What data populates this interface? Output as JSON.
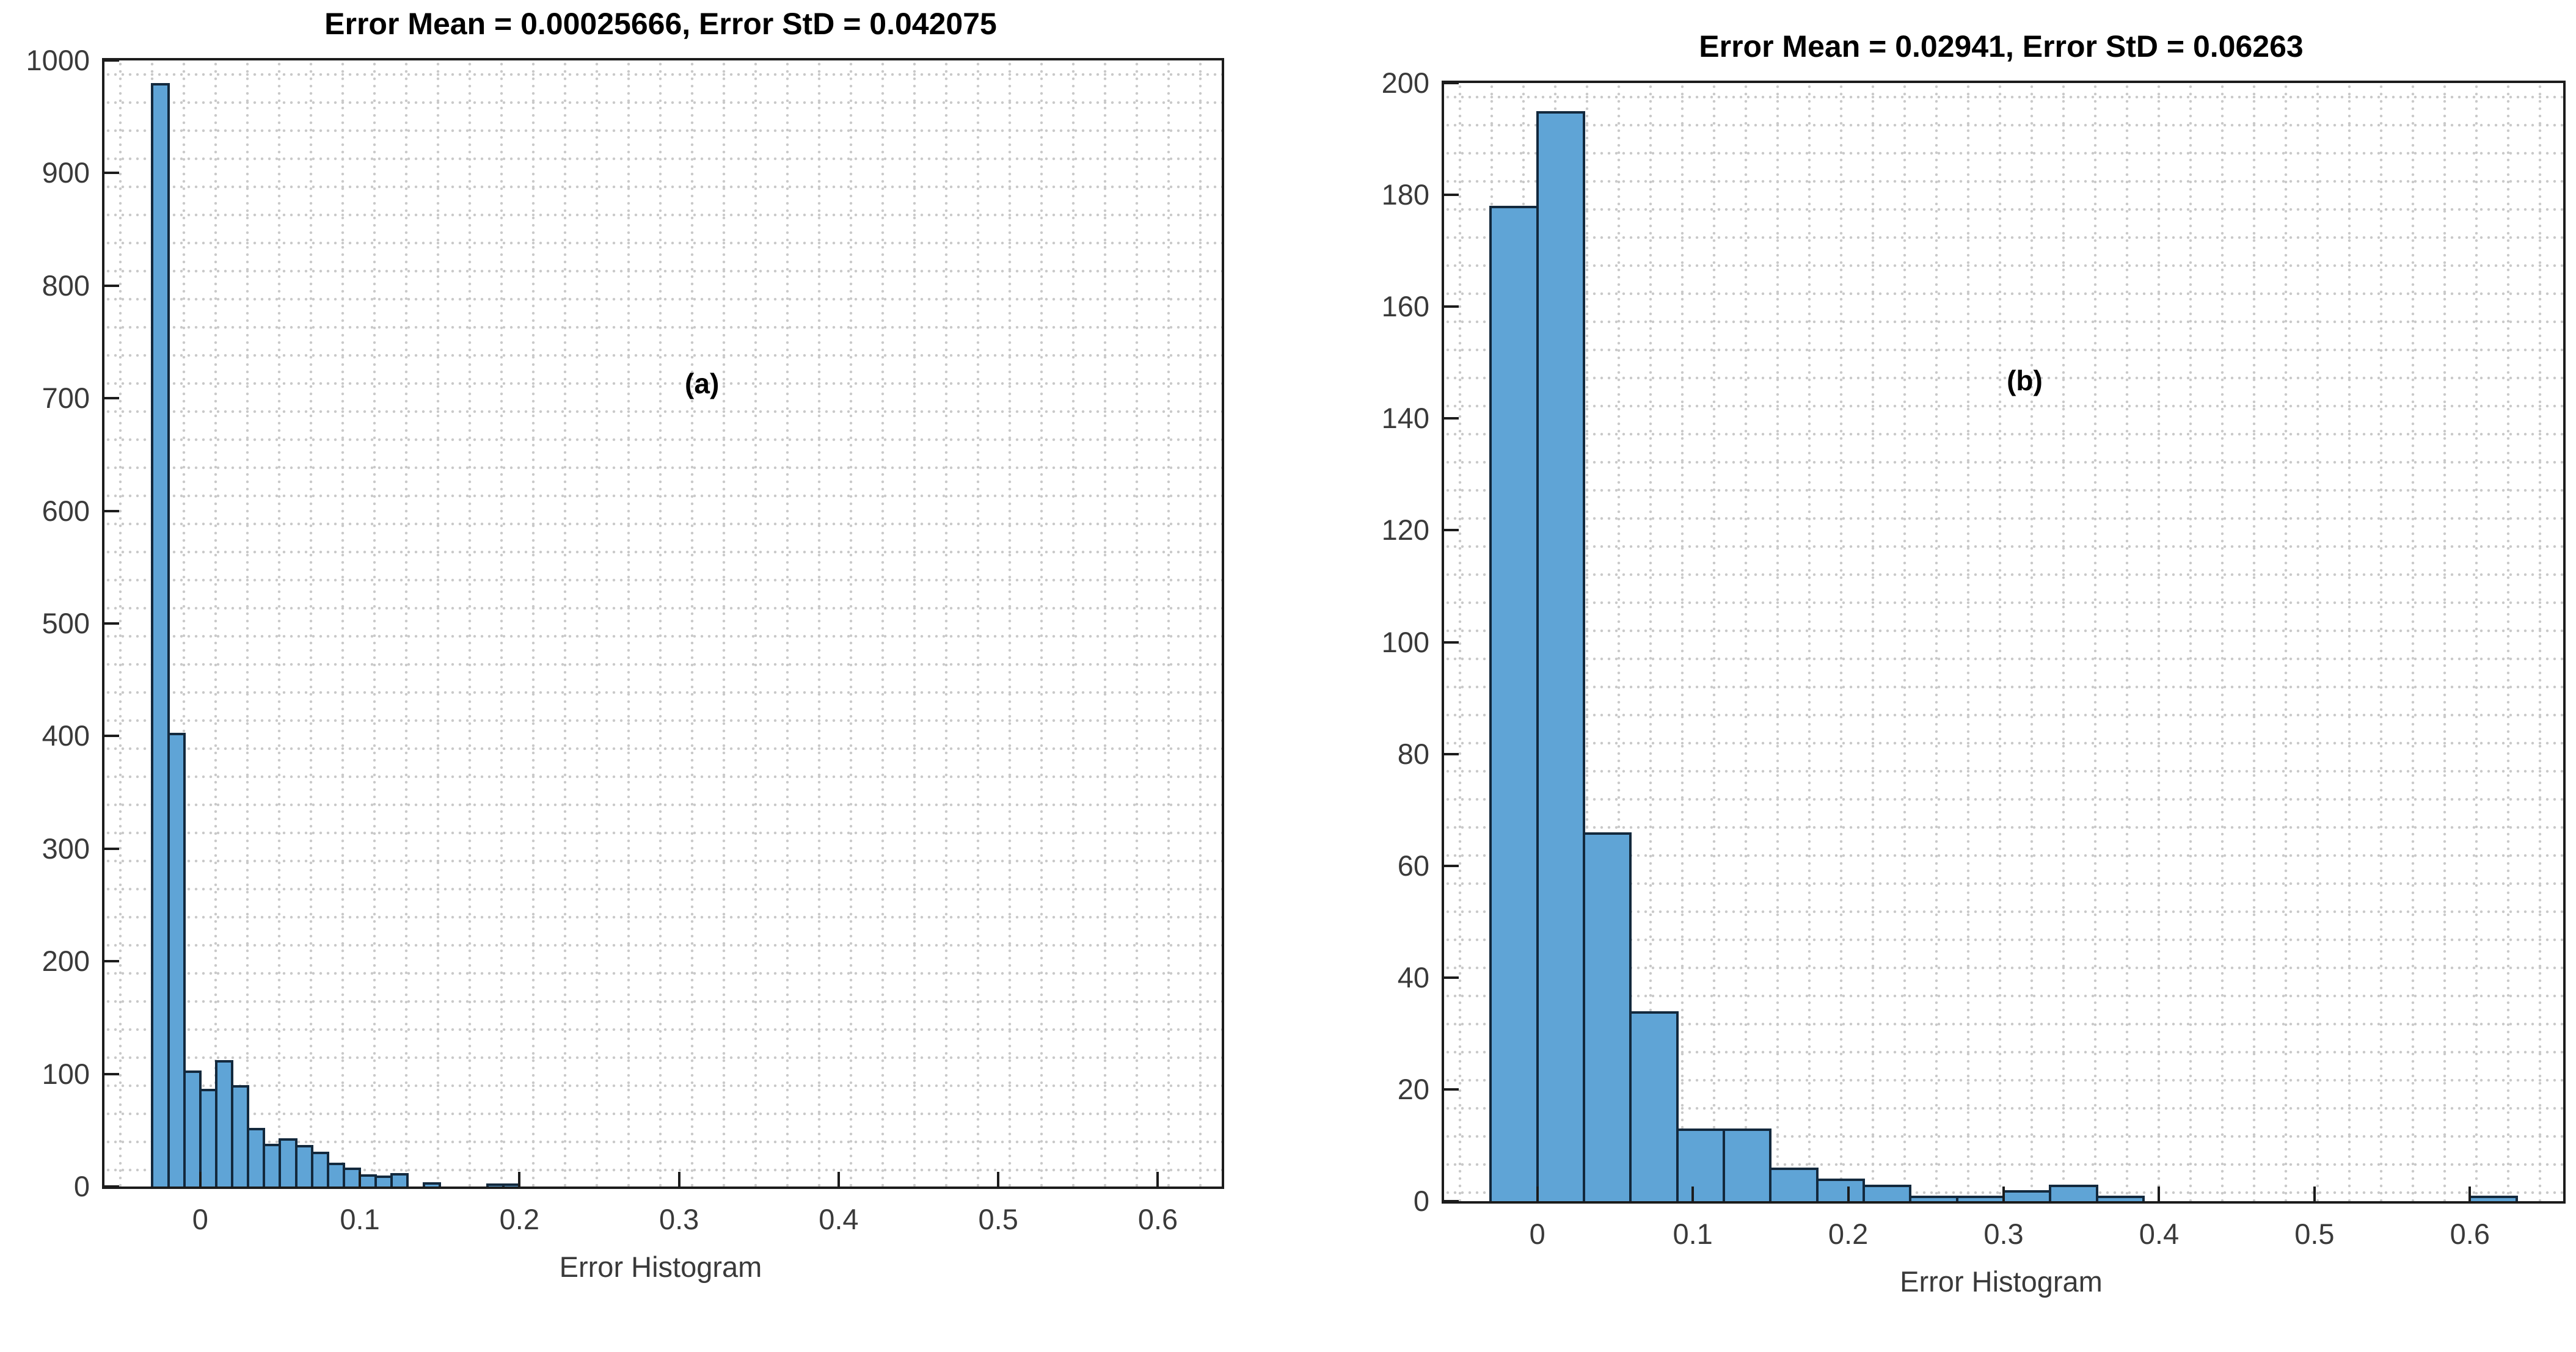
{
  "figure": {
    "background": "#ffffff",
    "frame_color": "#1c1c1c",
    "grid_style": "dotted",
    "grid_color": "#c9c9c9"
  },
  "chart_data": [
    {
      "type": "bar",
      "subtype": "histogram",
      "title": "Error Mean = 0.00025666, Error StD = 0.042075",
      "error_mean": 0.00025666,
      "error_std": 0.042075,
      "xlabel": "Error Histogram",
      "annotation": "(a)",
      "bin_start": -0.03,
      "bin_width": 0.01,
      "values": [
        980,
        403,
        103,
        87,
        112,
        90,
        52,
        38,
        43,
        37,
        31,
        21,
        17,
        11,
        10,
        12,
        0,
        4,
        0,
        0,
        0,
        2,
        2
      ],
      "xlim": [
        -0.06,
        0.64
      ],
      "ylim": [
        0,
        1000
      ],
      "xticks": [
        0,
        0.1,
        0.2,
        0.3,
        0.4,
        0.5,
        0.6
      ],
      "xtick_labels": [
        "0",
        "0.1",
        "0.2",
        "0.3",
        "0.4",
        "0.5",
        "0.6"
      ],
      "yticks": [
        0,
        100,
        200,
        300,
        400,
        500,
        600,
        700,
        800,
        900,
        1000
      ],
      "ytick_labels": [
        "0",
        "100",
        "200",
        "300",
        "400",
        "500",
        "600",
        "700",
        "800",
        "900",
        "1000"
      ],
      "grid": "dotted",
      "legend": "none",
      "bar_fill": "#5fa4d6",
      "bar_edge": "#13293d",
      "annotation_pos": {
        "x": 0.537,
        "y": 0.289
      }
    },
    {
      "type": "bar",
      "subtype": "histogram",
      "title": "Error Mean = 0.02941, Error StD = 0.06263",
      "error_mean": 0.02941,
      "error_std": 0.06263,
      "xlabel": "Error Histogram",
      "annotation": "(b)",
      "bin_start": -0.03,
      "bin_width": 0.03,
      "values": [
        178,
        195,
        66,
        34,
        13,
        13,
        6,
        4,
        3,
        1,
        1,
        2,
        3,
        1,
        0,
        0,
        0,
        0,
        0,
        0,
        0,
        1
      ],
      "xlim": [
        -0.06,
        0.66
      ],
      "ylim": [
        0,
        200
      ],
      "xticks": [
        0,
        0.1,
        0.2,
        0.3,
        0.4,
        0.5,
        0.6
      ],
      "xtick_labels": [
        "0",
        "0.1",
        "0.2",
        "0.3",
        "0.4",
        "0.5",
        "0.6"
      ],
      "yticks": [
        0,
        20,
        40,
        60,
        80,
        100,
        120,
        140,
        160,
        180,
        200
      ],
      "ytick_labels": [
        "0",
        "20",
        "40",
        "60",
        "80",
        "100",
        "120",
        "140",
        "160",
        "180",
        "200"
      ],
      "grid": "dotted",
      "legend": "none",
      "bar_fill": "#5fa4d6",
      "bar_edge": "#13293d",
      "annotation_pos": {
        "x": 0.521,
        "y": 0.268
      }
    }
  ]
}
